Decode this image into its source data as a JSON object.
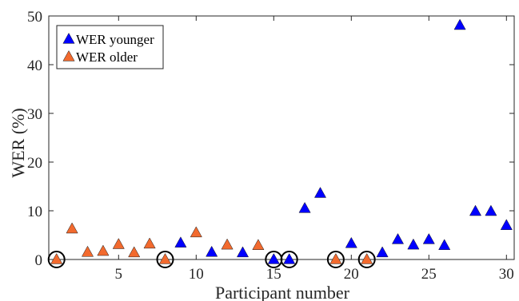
{
  "chart_data": {
    "type": "scatter",
    "xlabel": "Participant number",
    "ylabel": "WER (%)",
    "xlim": [
      0.5,
      30.5
    ],
    "ylim": [
      0,
      50
    ],
    "xticks": [
      5,
      10,
      15,
      20,
      25,
      30
    ],
    "yticks": [
      0,
      10,
      20,
      30,
      40,
      50
    ],
    "xtick_labels": [
      "5",
      "10",
      "15",
      "20",
      "25",
      "30"
    ],
    "ytick_labels": [
      "0",
      "10",
      "20",
      "30",
      "40",
      "50"
    ],
    "grid": false,
    "legend_position": "top-left",
    "marker": "triangle",
    "series": [
      {
        "name": "WER younger",
        "color": "#0000ff",
        "points": [
          {
            "x": 9,
            "y": 3.4
          },
          {
            "x": 11,
            "y": 1.5
          },
          {
            "x": 13,
            "y": 1.4
          },
          {
            "x": 15,
            "y": 0
          },
          {
            "x": 16,
            "y": 0
          },
          {
            "x": 17,
            "y": 10.5
          },
          {
            "x": 18,
            "y": 13.6
          },
          {
            "x": 20,
            "y": 3.3
          },
          {
            "x": 22,
            "y": 1.4
          },
          {
            "x": 23,
            "y": 4.1
          },
          {
            "x": 24,
            "y": 3.0
          },
          {
            "x": 25,
            "y": 4.1
          },
          {
            "x": 26,
            "y": 2.9
          },
          {
            "x": 27,
            "y": 48.1
          },
          {
            "x": 28,
            "y": 9.9
          },
          {
            "x": 29,
            "y": 9.9
          },
          {
            "x": 30,
            "y": 7.0
          }
        ]
      },
      {
        "name": "WER older",
        "color": "#f26a2e",
        "points": [
          {
            "x": 1,
            "y": 0
          },
          {
            "x": 2,
            "y": 6.3
          },
          {
            "x": 3,
            "y": 1.5
          },
          {
            "x": 4,
            "y": 1.7
          },
          {
            "x": 5,
            "y": 3.1
          },
          {
            "x": 6,
            "y": 1.4
          },
          {
            "x": 7,
            "y": 3.2
          },
          {
            "x": 8,
            "y": 0
          },
          {
            "x": 10,
            "y": 5.5
          },
          {
            "x": 12,
            "y": 3.0
          },
          {
            "x": 14,
            "y": 2.9
          },
          {
            "x": 19,
            "y": 0
          },
          {
            "x": 21,
            "y": 0
          }
        ]
      }
    ],
    "circled_points": [
      {
        "x": 1,
        "y": 0
      },
      {
        "x": 8,
        "y": 0
      },
      {
        "x": 15,
        "y": 0
      },
      {
        "x": 16,
        "y": 0
      },
      {
        "x": 19,
        "y": 0
      },
      {
        "x": 21,
        "y": 0
      }
    ]
  }
}
